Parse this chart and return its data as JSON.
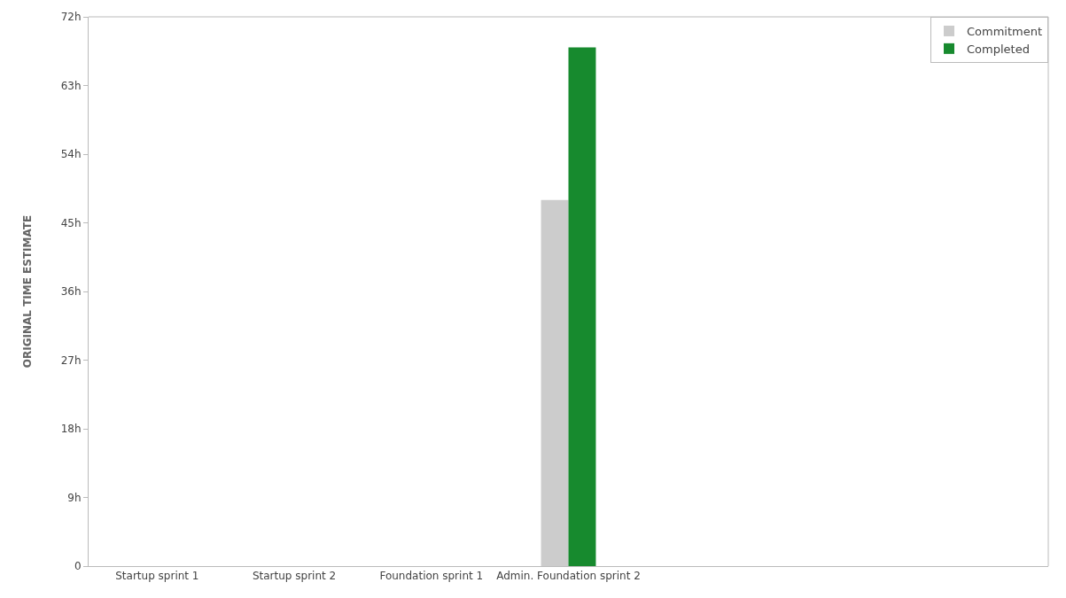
{
  "chart_data": {
    "type": "bar",
    "ylabel": "ORIGINAL TIME ESTIMATE",
    "categories": [
      "Startup sprint 1",
      "Startup sprint 2",
      "Foundation sprint 1",
      "Admin. Foundation sprint 2",
      null,
      null,
      null
    ],
    "series": [
      {
        "name": "Commitment",
        "color": "#cccccc",
        "values": [
          null,
          null,
          null,
          48,
          null,
          null,
          null
        ]
      },
      {
        "name": "Completed",
        "color": "#178a2e",
        "values": [
          null,
          null,
          null,
          68,
          null,
          null,
          null
        ]
      }
    ],
    "ylim": [
      0,
      72
    ],
    "yticks": [
      0,
      {
        "value": 9,
        "label": "9h"
      },
      {
        "value": 18,
        "label": "18h"
      },
      {
        "value": 27,
        "label": "27h"
      },
      {
        "value": 36,
        "label": "36h"
      },
      {
        "value": 45,
        "label": "45h"
      },
      {
        "value": 54,
        "label": "54h"
      },
      {
        "value": 63,
        "label": "63h"
      },
      {
        "value": 72,
        "label": "72h"
      }
    ],
    "legend": "top right"
  }
}
